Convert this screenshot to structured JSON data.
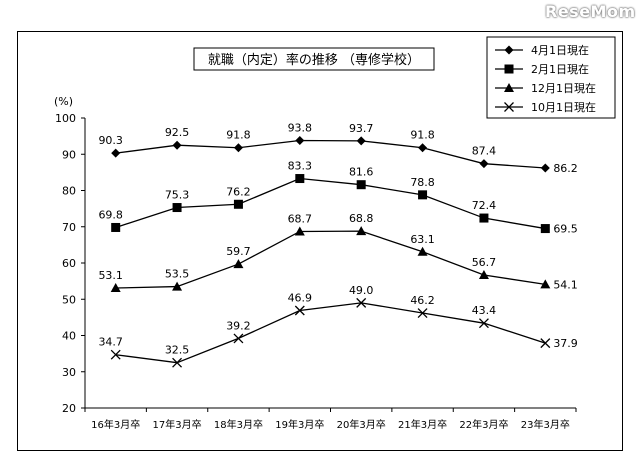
{
  "watermark": "ReseMom",
  "chart_data": {
    "type": "line",
    "title": "就職（内定）率の推移 （専修学校）",
    "ylabel": "(%)",
    "xlabel": "",
    "categories": [
      "16年3月卒",
      "17年3月卒",
      "18年3月卒",
      "19年3月卒",
      "20年3月卒",
      "21年3月卒",
      "22年3月卒",
      "23年3月卒"
    ],
    "ylim": [
      20,
      100
    ],
    "yticks": [
      20,
      30,
      40,
      50,
      60,
      70,
      80,
      90,
      100
    ],
    "grid": false,
    "legend_position": "top-right",
    "series": [
      {
        "name": "4月1日現在",
        "marker": "diamond",
        "values": [
          90.3,
          92.5,
          91.8,
          93.8,
          93.7,
          91.8,
          87.4,
          86.2
        ]
      },
      {
        "name": "2月1日現在",
        "marker": "square",
        "values": [
          69.8,
          75.3,
          76.2,
          83.3,
          81.6,
          78.8,
          72.4,
          69.5
        ]
      },
      {
        "name": "12月1日現在",
        "marker": "triangle",
        "values": [
          53.1,
          53.5,
          59.7,
          68.7,
          68.8,
          63.1,
          56.7,
          54.1
        ]
      },
      {
        "name": "10月1日現在",
        "marker": "x",
        "values": [
          34.7,
          32.5,
          39.2,
          46.9,
          49.0,
          46.2,
          43.4,
          37.9
        ]
      }
    ]
  }
}
